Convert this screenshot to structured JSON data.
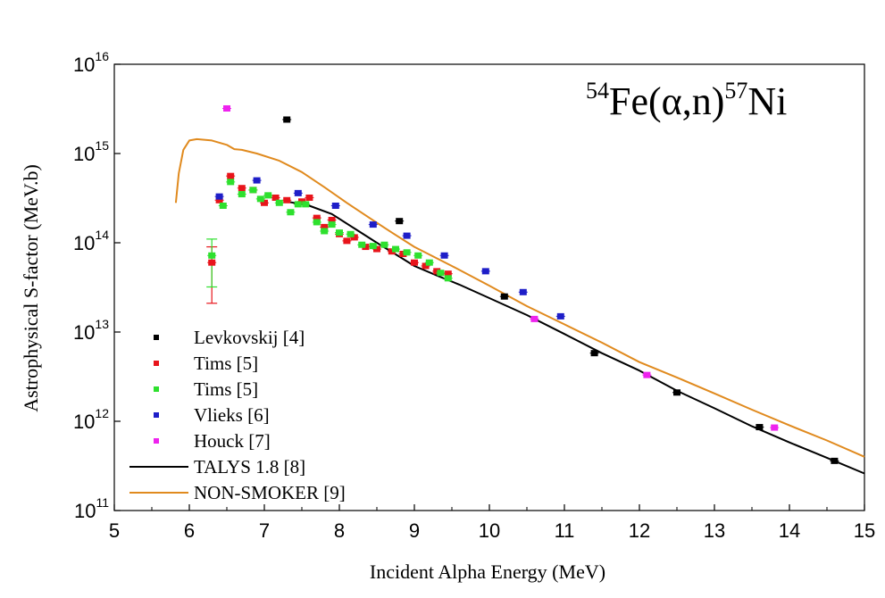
{
  "chart_data": {
    "type": "scatter",
    "annotation": {
      "mass_a": "54",
      "target": "Fe(",
      "alpha": "α",
      "mid": ",n)",
      "mass_b": "57",
      "product": "Ni"
    },
    "xlabel": "Incident Alpha Energy (MeV)",
    "ylabel": "Astrophysical S-factor (MeV.b)",
    "xlim": [
      5,
      15
    ],
    "ylim_log10": [
      11,
      16
    ],
    "y_scale": "log",
    "x_ticks": [
      "5",
      "6",
      "7",
      "8",
      "9",
      "10",
      "11",
      "12",
      "13",
      "14",
      "15"
    ],
    "y_ticks": [
      {
        "base": "10",
        "exp": "11",
        "value": 11
      },
      {
        "base": "10",
        "exp": "12",
        "value": 12
      },
      {
        "base": "10",
        "exp": "13",
        "value": 13
      },
      {
        "base": "10",
        "exp": "14",
        "value": 14
      },
      {
        "base": "10",
        "exp": "15",
        "value": 15
      },
      {
        "base": "10",
        "exp": "16",
        "value": 16
      }
    ],
    "legend_position": "bottom-left",
    "series": [
      {
        "name": "Levkovskij [4]",
        "kind": "points",
        "color": "#000000",
        "points": [
          [
            7.3,
            2400000000000000.0
          ],
          [
            8.8,
            175000000000000.0
          ],
          [
            10.2,
            25000000000000.0
          ],
          [
            11.4,
            5800000000000.0
          ],
          [
            12.5,
            2100000000000.0
          ],
          [
            13.6,
            860000000000.0
          ],
          [
            14.6,
            360000000000.0
          ]
        ]
      },
      {
        "name": "Tims [5]",
        "kind": "points",
        "color": "#e8141b",
        "points": [
          [
            6.3,
            60000000000000.0
          ],
          [
            6.4,
            300000000000000.0
          ],
          [
            6.55,
            560000000000000.0
          ],
          [
            6.7,
            410000000000000.0
          ],
          [
            6.85,
            390000000000000.0
          ],
          [
            7.0,
            280000000000000.0
          ],
          [
            7.15,
            320000000000000.0
          ],
          [
            7.3,
            300000000000000.0
          ],
          [
            7.5,
            290000000000000.0
          ],
          [
            7.6,
            320000000000000.0
          ],
          [
            7.7,
            190000000000000.0
          ],
          [
            7.8,
            150000000000000.0
          ],
          [
            7.9,
            180000000000000.0
          ],
          [
            8.0,
            125000000000000.0
          ],
          [
            8.1,
            105000000000000.0
          ],
          [
            8.2,
            115000000000000.0
          ],
          [
            8.35,
            90000000000000.0
          ],
          [
            8.5,
            85000000000000.0
          ],
          [
            8.7,
            80000000000000.0
          ],
          [
            8.85,
            75000000000000.0
          ],
          [
            9.0,
            60000000000000.0
          ],
          [
            9.15,
            55000000000000.0
          ],
          [
            9.3,
            48000000000000.0
          ],
          [
            9.45,
            45000000000000.0
          ]
        ]
      },
      {
        "name": "Tims [5]",
        "kind": "points",
        "color": "#2ee02e",
        "points": [
          [
            6.3,
            72000000000000.0
          ],
          [
            6.45,
            260000000000000.0
          ],
          [
            6.55,
            480000000000000.0
          ],
          [
            6.7,
            350000000000000.0
          ],
          [
            6.85,
            390000000000000.0
          ],
          [
            6.95,
            310000000000000.0
          ],
          [
            7.05,
            340000000000000.0
          ],
          [
            7.2,
            280000000000000.0
          ],
          [
            7.35,
            220000000000000.0
          ],
          [
            7.45,
            270000000000000.0
          ],
          [
            7.55,
            270000000000000.0
          ],
          [
            7.7,
            170000000000000.0
          ],
          [
            7.8,
            135000000000000.0
          ],
          [
            7.9,
            160000000000000.0
          ],
          [
            8.0,
            130000000000000.0
          ],
          [
            8.15,
            125000000000000.0
          ],
          [
            8.3,
            95000000000000.0
          ],
          [
            8.45,
            92000000000000.0
          ],
          [
            8.6,
            95000000000000.0
          ],
          [
            8.75,
            85000000000000.0
          ],
          [
            8.9,
            78000000000000.0
          ],
          [
            9.05,
            72000000000000.0
          ],
          [
            9.2,
            60000000000000.0
          ],
          [
            9.35,
            46000000000000.0
          ],
          [
            9.45,
            40000000000000.0
          ]
        ]
      },
      {
        "name": "Vlieks [6]",
        "kind": "points",
        "color": "#1e1ec8",
        "points": [
          [
            6.4,
            330000000000000.0
          ],
          [
            6.9,
            500000000000000.0
          ],
          [
            7.45,
            360000000000000.0
          ],
          [
            7.95,
            260000000000000.0
          ],
          [
            8.45,
            160000000000000.0
          ],
          [
            8.9,
            120000000000000.0
          ],
          [
            9.4,
            72000000000000.0
          ],
          [
            9.95,
            48000000000000.0
          ],
          [
            10.45,
            28000000000000.0
          ],
          [
            10.95,
            15000000000000.0
          ]
        ]
      },
      {
        "name": "Houck [7]",
        "kind": "points",
        "color": "#ee22ee",
        "points": [
          [
            6.5,
            3200000000000000.0
          ],
          [
            10.6,
            14000000000000.0
          ],
          [
            12.1,
            3300000000000.0
          ],
          [
            13.8,
            850000000000.0
          ]
        ]
      },
      {
        "name": "TALYS 1.8 [8]",
        "kind": "line",
        "color": "#000000",
        "points": [
          [
            7.3,
            290000000000000.0
          ],
          [
            7.6,
            260000000000000.0
          ],
          [
            7.9,
            210000000000000.0
          ],
          [
            8.2,
            145000000000000.0
          ],
          [
            8.5,
            100000000000000.0
          ],
          [
            8.8,
            70000000000000.0
          ],
          [
            9.0,
            55000000000000.0
          ],
          [
            9.3,
            43000000000000.0
          ],
          [
            9.6,
            34000000000000.0
          ],
          [
            10.0,
            24000000000000.0
          ],
          [
            10.5,
            15500000000000.0
          ],
          [
            11.0,
            9500000000000.0
          ],
          [
            11.5,
            5800000000000.0
          ],
          [
            12.0,
            3700000000000.0
          ],
          [
            12.5,
            2200000000000.0
          ],
          [
            13.0,
            1400000000000.0
          ],
          [
            13.5,
            880000000000.0
          ],
          [
            14.0,
            580000000000.0
          ],
          [
            14.5,
            390000000000.0
          ],
          [
            15.0,
            260000000000.0
          ]
        ]
      },
      {
        "name": "NON-SMOKER [9]",
        "kind": "line",
        "color": "#e08a1e",
        "points": [
          [
            5.82,
            280000000000000.0
          ],
          [
            5.86,
            600000000000000.0
          ],
          [
            5.92,
            1100000000000000.0
          ],
          [
            6.0,
            1400000000000000.0
          ],
          [
            6.1,
            1450000000000000.0
          ],
          [
            6.3,
            1400000000000000.0
          ],
          [
            6.5,
            1250000000000000.0
          ],
          [
            6.6,
            1120000000000000.0
          ],
          [
            6.7,
            1100000000000000.0
          ],
          [
            6.9,
            1000000000000000.0
          ],
          [
            7.2,
            830000000000000.0
          ],
          [
            7.5,
            620000000000000.0
          ],
          [
            7.8,
            420000000000000.0
          ],
          [
            8.1,
            280000000000000.0
          ],
          [
            8.4,
            190000000000000.0
          ],
          [
            8.7,
            130000000000000.0
          ],
          [
            9.0,
            90000000000000.0
          ],
          [
            9.5,
            55000000000000.0
          ],
          [
            10.0,
            33000000000000.0
          ],
          [
            10.5,
            19500000000000.0
          ],
          [
            11.0,
            12200000000000.0
          ],
          [
            11.5,
            7600000000000.0
          ],
          [
            12.0,
            4600000000000.0
          ],
          [
            12.5,
            3100000000000.0
          ],
          [
            13.0,
            2050000000000.0
          ],
          [
            13.5,
            1350000000000.0
          ],
          [
            14.0,
            900000000000.0
          ],
          [
            14.5,
            610000000000.0
          ],
          [
            15.0,
            400000000000.0
          ]
        ]
      }
    ],
    "error_bars": [
      {
        "series": "Tims [5]",
        "color": "#e8141b",
        "x": 6.3,
        "low": 21000000000000.0,
        "high": 90000000000000.0
      },
      {
        "series": "Tims [5]",
        "color": "#2ee02e",
        "x": 6.3,
        "low": 32000000000000.0,
        "high": 110000000000000.0
      }
    ]
  }
}
